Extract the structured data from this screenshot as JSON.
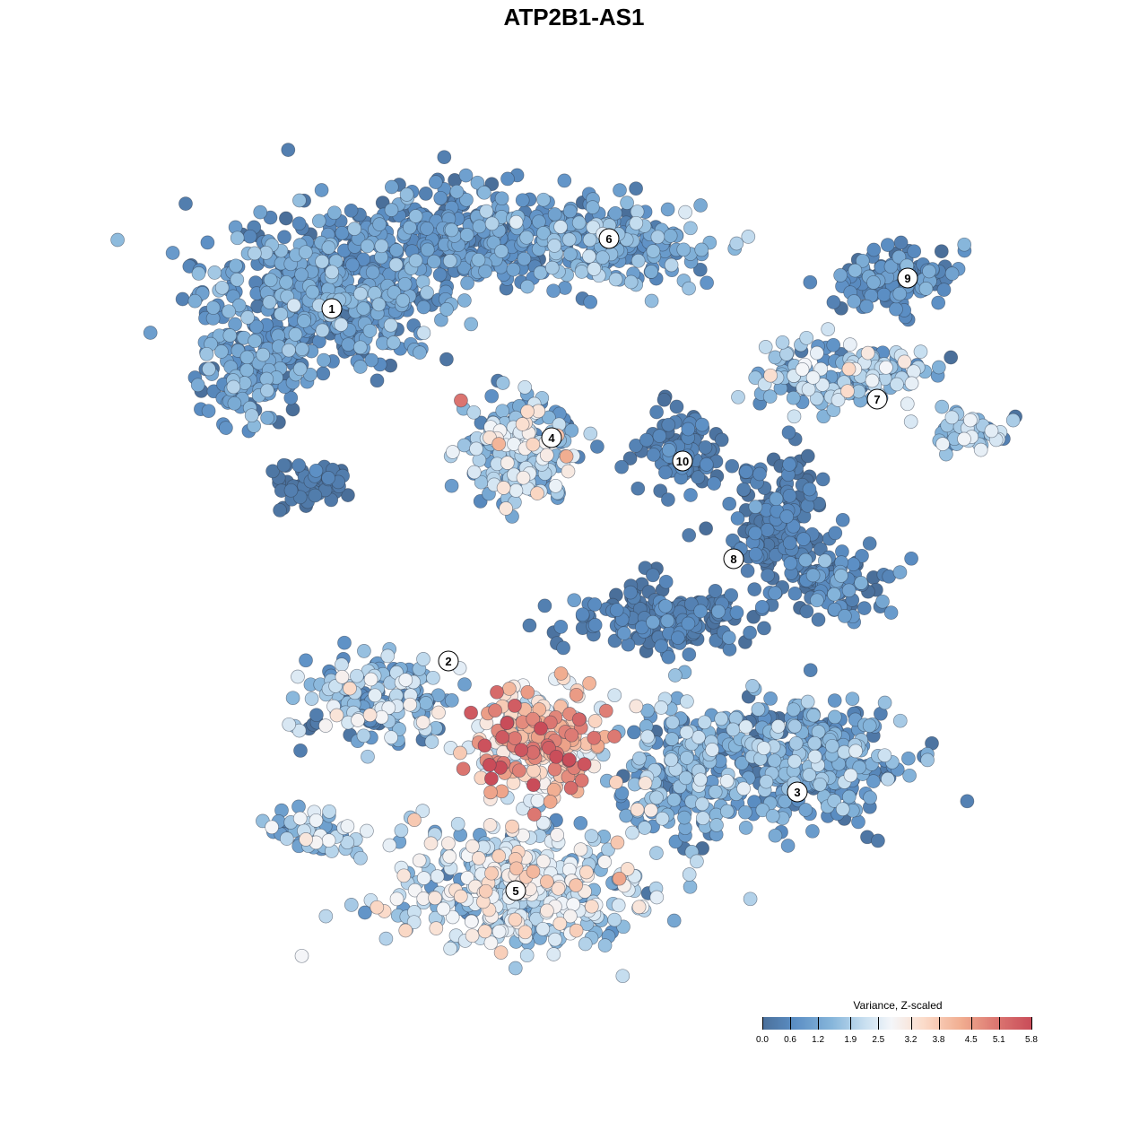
{
  "chart_data": {
    "type": "scatter",
    "title": "ATP2B1-AS1",
    "legend": {
      "title": "Variance, Z-scaled",
      "placement": "bottom-right",
      "ticks": [
        "0.0",
        "0.6",
        "1.2",
        "1.9",
        "2.5",
        "3.2",
        "3.8",
        "4.5",
        "5.1",
        "5.8"
      ],
      "range": [
        0.0,
        5.8
      ]
    },
    "color_scale": [
      "#4a6f9a",
      "#5b8ec4",
      "#87b6db",
      "#c8dff0",
      "#f4f6f9",
      "#fbdbc9",
      "#f1ad90",
      "#dd7a73",
      "#c94c59"
    ],
    "clusters": [
      {
        "label": "1",
        "mean_value": 0.8
      },
      {
        "label": "2",
        "mean_value": 1.6
      },
      {
        "label": "3",
        "mean_value": 1.0
      },
      {
        "label": "4",
        "mean_value": 1.8
      },
      {
        "label": "5",
        "mean_value": 2.3
      },
      {
        "label": "6",
        "mean_value": 0.9
      },
      {
        "label": "7",
        "mean_value": 1.9
      },
      {
        "label": "8",
        "mean_value": 0.3
      },
      {
        "label": "9",
        "mean_value": 0.6
      },
      {
        "label": "10",
        "mean_value": 0.4
      }
    ],
    "axes": {
      "x": "none",
      "y": "none"
    },
    "grid": false
  }
}
